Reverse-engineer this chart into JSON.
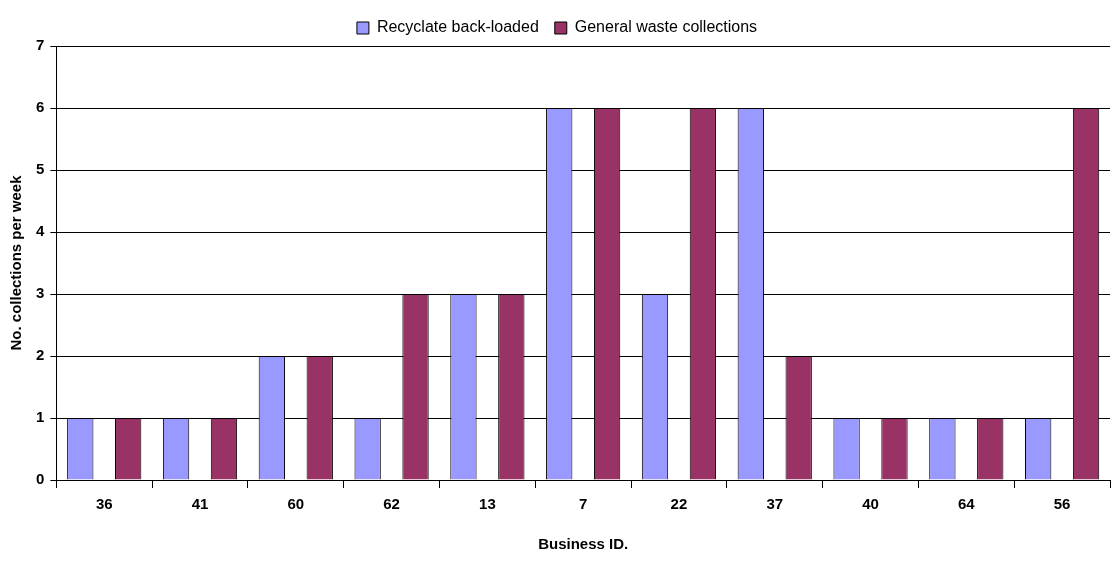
{
  "chart_data": {
    "type": "bar",
    "xlabel": "Business ID.",
    "ylabel": "No. collections per week",
    "categories": [
      "36",
      "41",
      "60",
      "62",
      "13",
      "7",
      "22",
      "37",
      "40",
      "64",
      "56"
    ],
    "series": [
      {
        "name": "Recyclate back-loaded",
        "color": "#9999ff",
        "values": [
          1,
          1,
          2,
          1,
          3,
          6,
          3,
          6,
          1,
          1,
          1
        ]
      },
      {
        "name": "General waste collections",
        "color": "#993366",
        "values": [
          1,
          1,
          2,
          3,
          3,
          6,
          6,
          2,
          1,
          1,
          6
        ]
      }
    ],
    "ylim": [
      0,
      7
    ],
    "yticks": [
      0,
      1,
      2,
      3,
      4,
      5,
      6,
      7
    ],
    "grid": "y",
    "legend": "top"
  }
}
